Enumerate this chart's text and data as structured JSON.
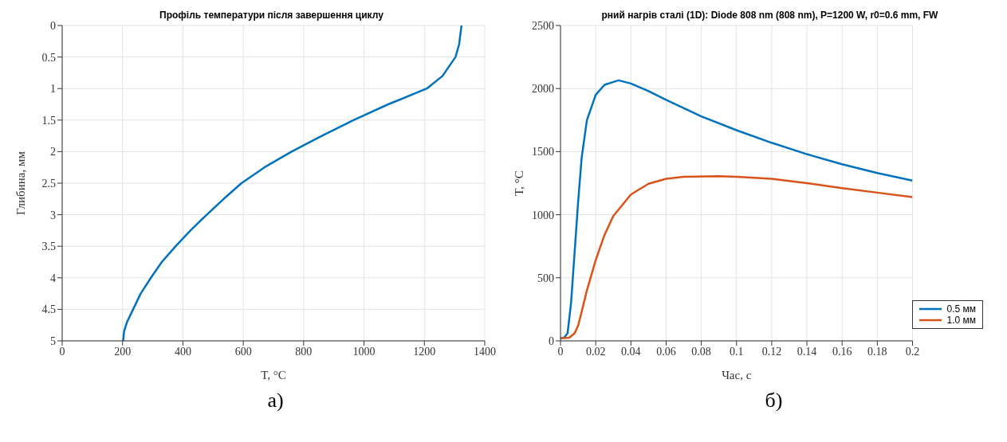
{
  "chart_data": [
    {
      "type": "line",
      "title": "Профіль температури після завершення циклу",
      "xlabel": "T, °C",
      "ylabel": "Глибина, мм",
      "xlim": [
        0,
        1400
      ],
      "xticks": [
        0,
        200,
        400,
        600,
        800,
        1000,
        1200,
        1400
      ],
      "ylim": [
        5,
        0
      ],
      "yticks": [
        0,
        0.5,
        1,
        1.5,
        2,
        2.5,
        3,
        3.5,
        4,
        4.5,
        5
      ],
      "grid": true,
      "annotations": [
        "а)"
      ],
      "series": [
        {
          "color": "#0072bd",
          "x": [
            202,
            205,
            215,
            235,
            260,
            294,
            330,
            376,
            425,
            479,
            535,
            594,
            670,
            760,
            860,
            965,
            1080,
            1208,
            1260,
            1303,
            1315,
            1323
          ],
          "values": [
            5,
            4.85,
            4.7,
            4.5,
            4.25,
            4,
            3.75,
            3.5,
            3.25,
            3,
            2.75,
            2.5,
            2.25,
            2,
            1.75,
            1.5,
            1.25,
            1,
            0.8,
            0.5,
            0.3,
            0
          ]
        }
      ]
    },
    {
      "type": "line",
      "title": "рний нагрів сталі (1D): Diode 808 nm (808 nm), P=1200 W, r0=0.6 mm, FW",
      "xlabel": "Час, с",
      "ylabel": "T, °C",
      "xlim": [
        0,
        0.2
      ],
      "xticks": [
        0,
        0.02,
        0.04,
        0.06,
        0.08,
        0.1,
        0.12,
        0.14,
        0.16,
        0.18,
        0.2
      ],
      "ylim": [
        0,
        2500
      ],
      "yticks": [
        0,
        500,
        1000,
        1500,
        2000,
        2500
      ],
      "grid": true,
      "legend": "bottom right",
      "annotations": [
        "б)"
      ],
      "series": [
        {
          "name": "0.5 мм",
          "color": "#0072bd",
          "x": [
            0,
            0.002,
            0.004,
            0.006,
            0.008,
            0.01,
            0.012,
            0.015,
            0.02,
            0.025,
            0.033,
            0.04,
            0.05,
            0.06,
            0.08,
            0.1,
            0.12,
            0.14,
            0.16,
            0.18,
            0.2
          ],
          "values": [
            20,
            25,
            60,
            300,
            700,
            1100,
            1450,
            1750,
            1950,
            2030,
            2065,
            2040,
            1980,
            1910,
            1780,
            1670,
            1570,
            1480,
            1400,
            1330,
            1270
          ]
        },
        {
          "name": "1.0 мм",
          "color": "#d95319",
          "x": [
            0,
            0.005,
            0.008,
            0.01,
            0.012,
            0.015,
            0.02,
            0.025,
            0.03,
            0.04,
            0.05,
            0.06,
            0.07,
            0.09,
            0.1,
            0.12,
            0.14,
            0.16,
            0.18,
            0.2
          ],
          "values": [
            20,
            25,
            60,
            120,
            230,
            400,
            640,
            840,
            990,
            1160,
            1245,
            1285,
            1300,
            1305,
            1300,
            1285,
            1250,
            1210,
            1175,
            1140
          ]
        }
      ]
    }
  ]
}
